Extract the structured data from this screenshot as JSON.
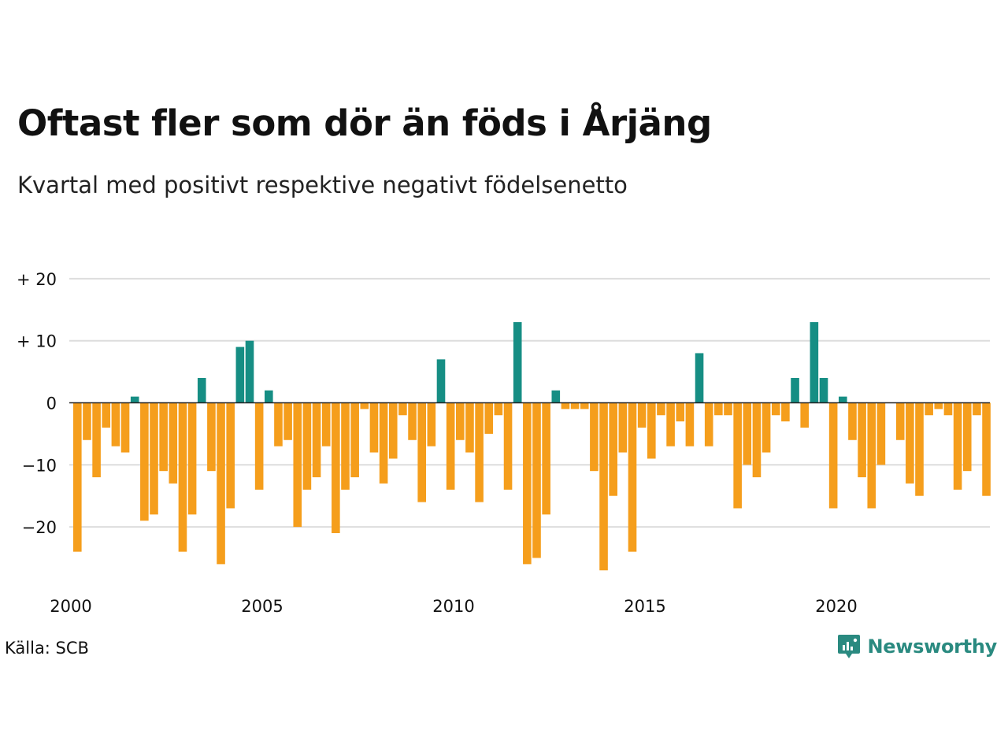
{
  "title": "Oftast fler som dör än föds i Årjäng",
  "subtitle": "Kvartal med positivt respektive negativt födelsenetto",
  "source": "Källa: SCB",
  "brand": "Newsworthy",
  "colors": {
    "positive": "#168e84",
    "negative": "#f59e1c",
    "grid": "#dddddd",
    "zero_line": "#222222"
  },
  "chart_data": {
    "type": "bar",
    "x_start": "2000 Q1",
    "x_tick_labels": [
      "2000",
      "2005",
      "2010",
      "2015",
      "2020"
    ],
    "y_tick_labels": [
      "+ 20",
      "+ 10",
      "0",
      "−10",
      "−20"
    ],
    "y_ticks": [
      20,
      10,
      0,
      -10,
      -20
    ],
    "ylim": [
      -29,
      20
    ],
    "grid": true,
    "values": [
      -24,
      -6,
      -12,
      -4,
      -7,
      -8,
      1,
      -19,
      -18,
      -11,
      -13,
      -24,
      -18,
      4,
      -11,
      -26,
      -17,
      9,
      10,
      -14,
      2,
      -7,
      -6,
      -20,
      -14,
      -12,
      -7,
      -21,
      -14,
      -12,
      -1,
      -8,
      -13,
      -9,
      -2,
      -6,
      -16,
      -7,
      7,
      -14,
      -6,
      -8,
      -16,
      -5,
      -2,
      -14,
      13,
      -26,
      -25,
      -18,
      2,
      -1,
      -1,
      -1,
      -11,
      -27,
      -15,
      -8,
      -24,
      -4,
      -9,
      -2,
      -7,
      -3,
      -7,
      8,
      -7,
      -2,
      -2,
      -17,
      -10,
      -12,
      -8,
      -2,
      -3,
      4,
      -4,
      13,
      4,
      -17,
      1,
      -6,
      -12,
      -17,
      -10,
      0,
      -6,
      -13,
      -15,
      -2,
      -1,
      -2,
      -14,
      -11,
      -2,
      -15
    ]
  }
}
